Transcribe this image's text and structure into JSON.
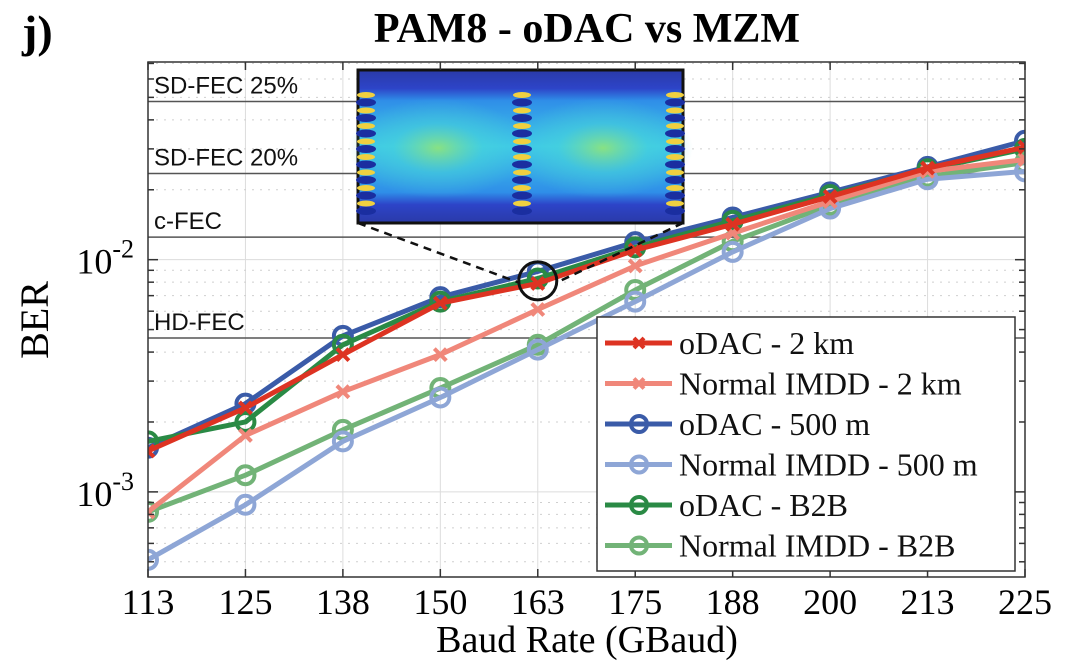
{
  "panel_label": "j)",
  "chart_data": {
    "type": "line",
    "title": "PAM8 - oDAC vs MZM",
    "xlabel": "Baud Rate (GBaud)",
    "ylabel": "BER",
    "yscale": "log",
    "ylim": [
      0.00043,
      0.071
    ],
    "x": [
      113,
      125,
      138,
      150,
      163,
      175,
      188,
      200,
      213,
      225
    ],
    "x_tick_labels": [
      "113",
      "125",
      "138",
      "150",
      "163",
      "175",
      "188",
      "200",
      "213",
      "225"
    ],
    "y_ticks": [
      {
        "value": 0.001,
        "base": "10",
        "exp": "-3"
      },
      {
        "value": 0.01,
        "base": "10",
        "exp": "-2"
      }
    ],
    "grid": true,
    "legend_position": "bottom-right",
    "thresholds": [
      {
        "label": "SD-FEC 25%",
        "value": 0.048
      },
      {
        "label": "SD-FEC 20%",
        "value": 0.0235
      },
      {
        "label": "c-FEC",
        "value": 0.0125
      },
      {
        "label": "HD-FEC",
        "value": 0.0046
      }
    ],
    "series": [
      {
        "name": "oDAC - 500 m",
        "color": "#3a5ba8",
        "marker": "circle",
        "values": [
          0.00155,
          0.0024,
          0.0047,
          0.0069,
          0.0089,
          0.0119,
          0.0152,
          0.0195,
          0.0251,
          0.0325
        ]
      },
      {
        "name": "oDAC - B2B",
        "color": "#2a8a45",
        "marker": "circle",
        "values": [
          0.00165,
          0.002,
          0.0043,
          0.0066,
          0.0083,
          0.0113,
          0.0147,
          0.019,
          0.0245,
          0.03
        ]
      },
      {
        "name": "Normal IMDD - B2B",
        "color": "#72b377",
        "marker": "circle",
        "values": [
          0.00082,
          0.00118,
          0.00185,
          0.0028,
          0.0043,
          0.0074,
          0.012,
          0.0172,
          0.0228,
          0.0262
        ]
      },
      {
        "name": "Normal IMDD - 500 m",
        "color": "#8ea6d6",
        "marker": "circle",
        "values": [
          0.00051,
          0.00088,
          0.00165,
          0.00255,
          0.0041,
          0.0066,
          0.0108,
          0.0166,
          0.0222,
          0.024
        ]
      },
      {
        "name": "Normal IMDD - 2 km",
        "color": "#f0877a",
        "marker": "x",
        "values": [
          0.00082,
          0.00175,
          0.0027,
          0.0039,
          0.0061,
          0.0094,
          0.013,
          0.0178,
          0.024,
          0.027
        ]
      },
      {
        "name": "oDAC - 2 km",
        "color": "#dd3322",
        "marker": "x",
        "values": [
          0.0015,
          0.0023,
          0.0039,
          0.0065,
          0.0079,
          0.011,
          0.0142,
          0.0187,
          0.0248,
          0.0305
        ]
      }
    ],
    "legend_order": [
      "oDAC - 2 km",
      "Normal IMDD - 2 km",
      "oDAC - 500 m",
      "Normal IMDD - 500 m",
      "oDAC - B2B",
      "Normal IMDD - B2B"
    ],
    "annotations": {
      "inset": "eye diagram (PAM8) zoom of 163 GBaud point",
      "highlight_x": 163,
      "highlight_value": 0.0081
    }
  }
}
